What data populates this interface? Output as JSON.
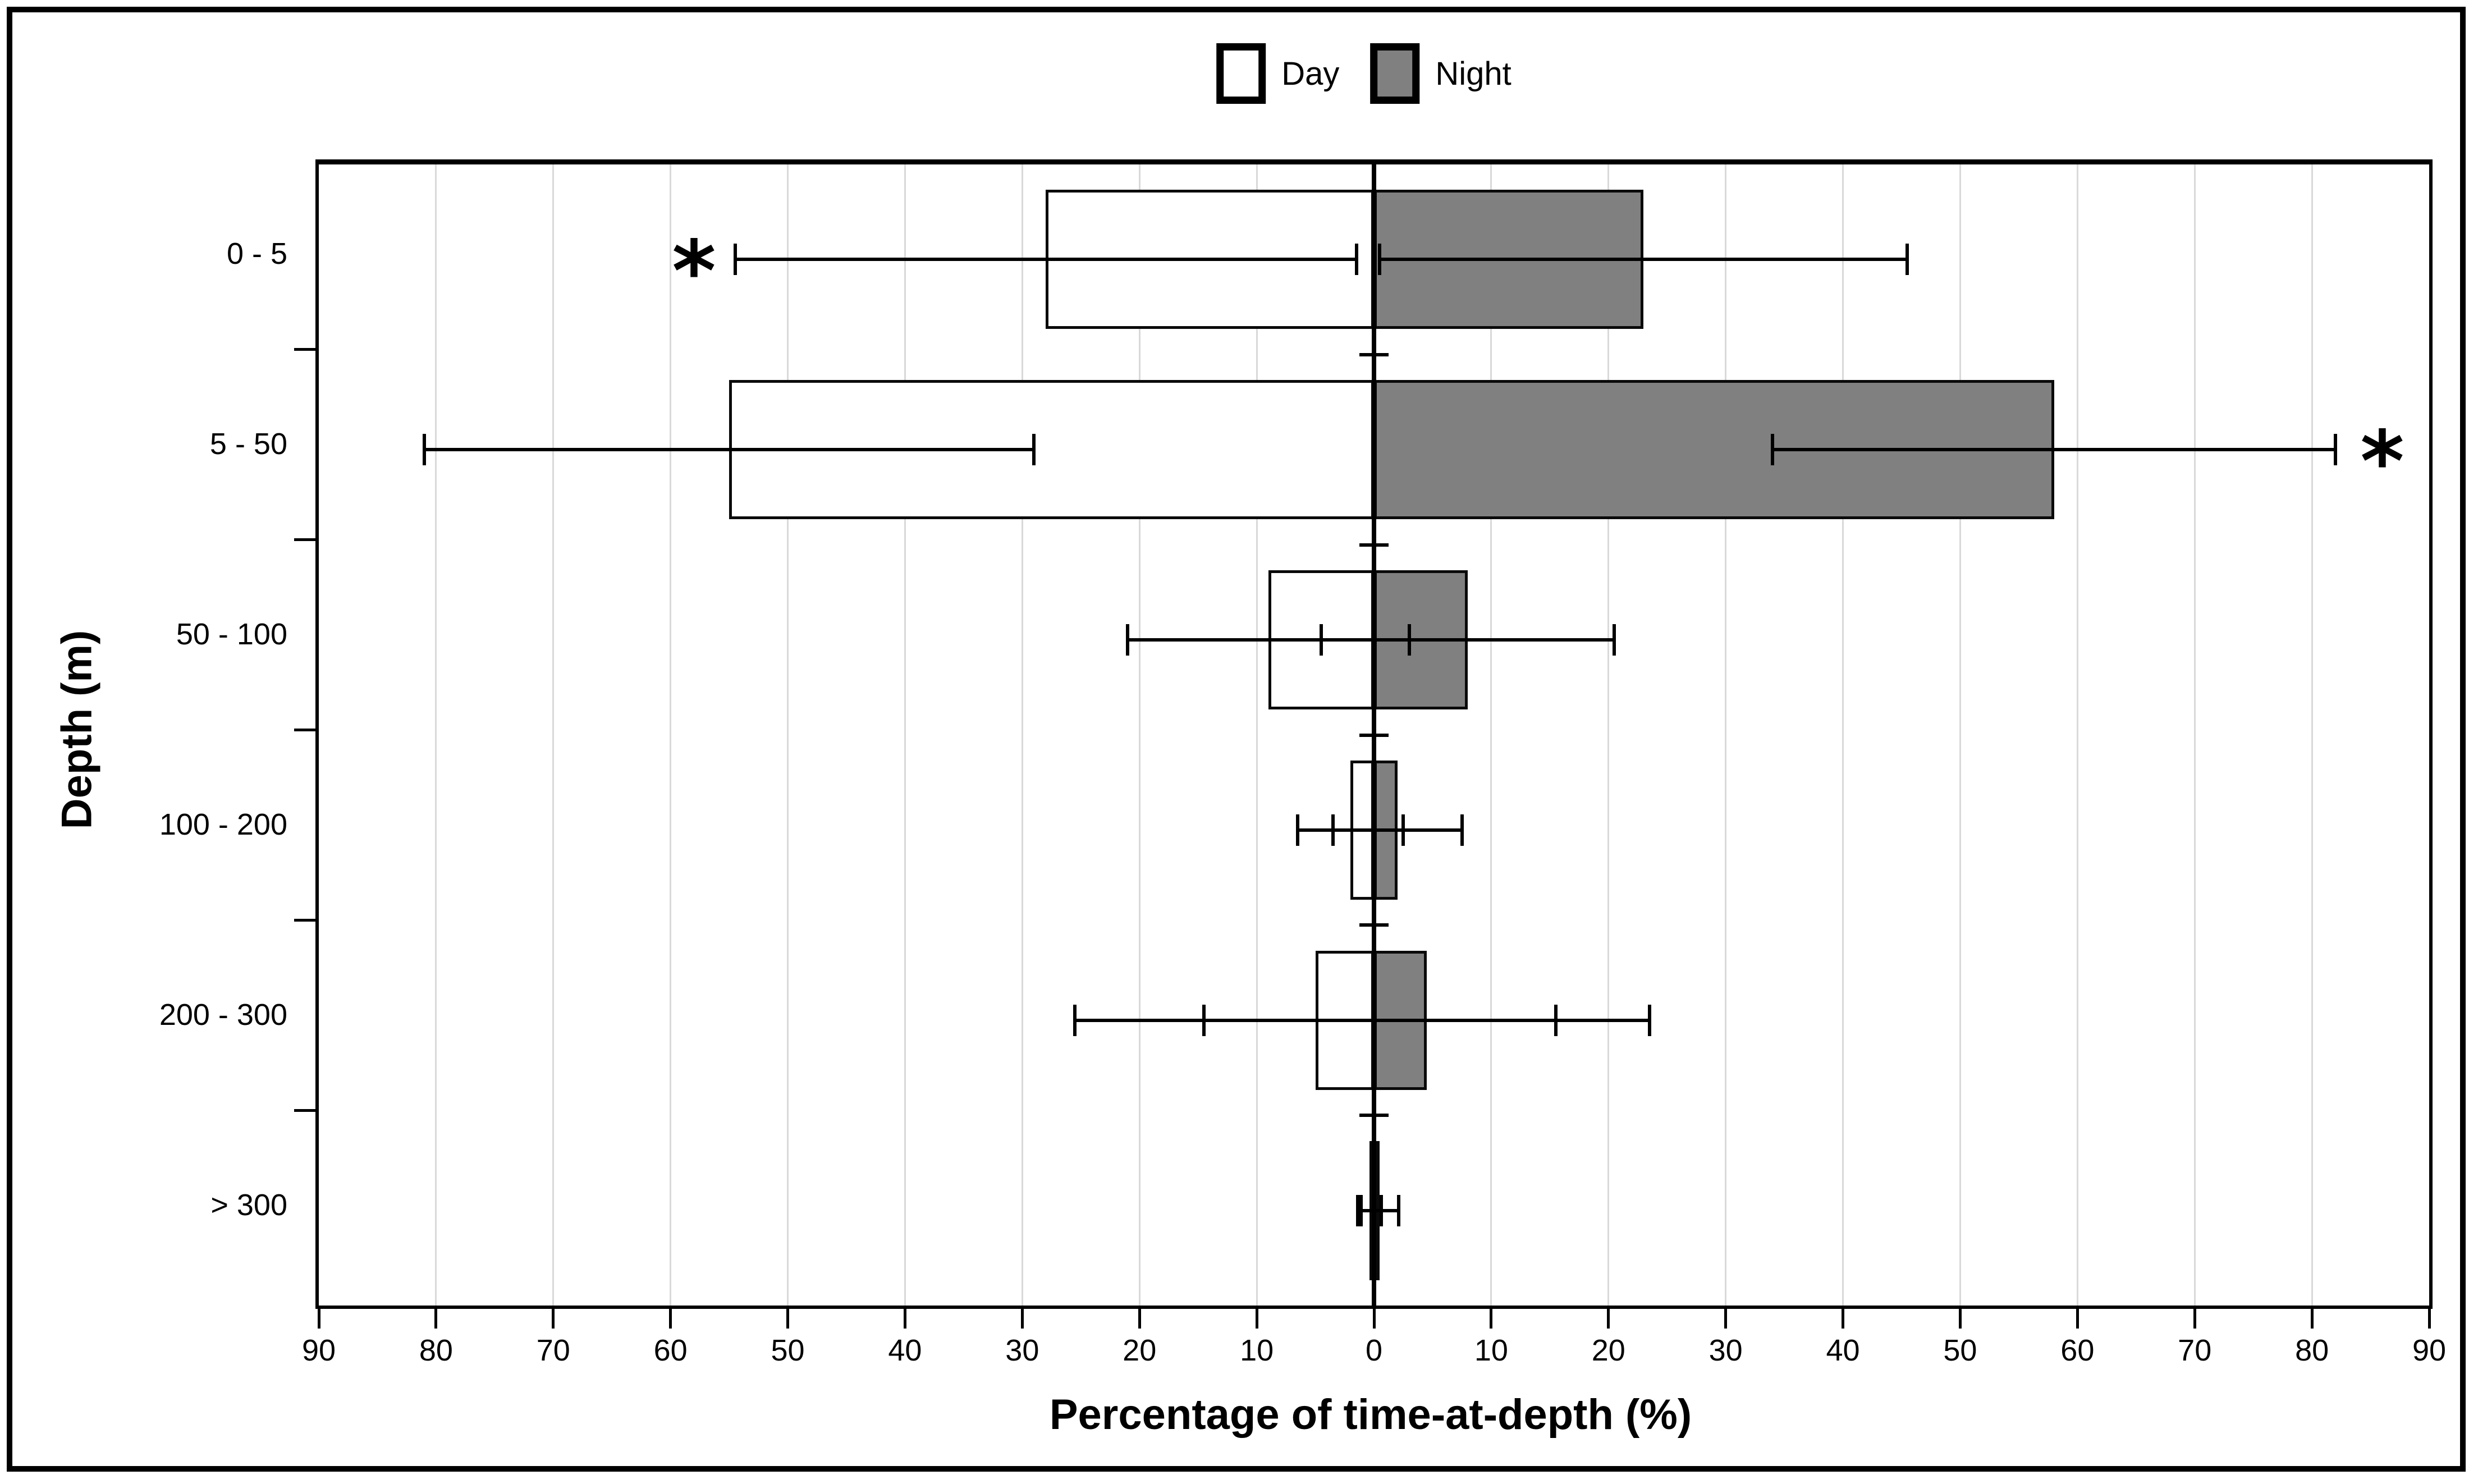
{
  "legend": {
    "items": [
      {
        "label": "Day",
        "fill": "#ffffff"
      },
      {
        "label": "Night",
        "fill": "#808080"
      }
    ]
  },
  "axes": {
    "x_title": "Percentage of time-at-depth (%)",
    "y_title": "Depth (m)",
    "x_tick_labels": [
      "90",
      "80",
      "70",
      "60",
      "50",
      "40",
      "30",
      "20",
      "10",
      "0",
      "10",
      "20",
      "30",
      "40",
      "50",
      "60",
      "70",
      "80",
      "90"
    ]
  },
  "colors": {
    "day_fill": "#ffffff",
    "night_fill": "#808080",
    "bar_border": "#0a0a0a",
    "gridline": "#d9d9d9",
    "axis": "#000000",
    "background": "#ffffff"
  },
  "chart_data": {
    "type": "bar",
    "subtype": "horizontal-diverging-with-error-bars",
    "title": "",
    "xlabel": "Percentage of time-at-depth (%)",
    "ylabel": "Depth (m)",
    "categories": [
      "0 - 5",
      "5 - 50",
      "50 - 100",
      "100 - 200",
      "200 - 300",
      "> 300"
    ],
    "xlim": [
      -90,
      90
    ],
    "x_tick_interval": 10,
    "x_tick_label_format": "absolute-value",
    "grid": "vertical-on",
    "legend_position": "top-center",
    "series": [
      {
        "name": "Day",
        "side": "left",
        "fill": "#ffffff",
        "values": [
          28,
          55,
          9,
          2,
          5,
          0.4
        ],
        "sd": [
          26.5,
          26,
          12,
          4.5,
          20.5,
          1.0
        ]
      },
      {
        "name": "Night",
        "side": "right",
        "fill": "#808080",
        "values": [
          23,
          58,
          8,
          2,
          4.5,
          0.5
        ],
        "sd": [
          22.5,
          24,
          12.5,
          5.5,
          19,
          1.6
        ]
      }
    ],
    "significance_markers": [
      {
        "category": "0 - 5",
        "side": "left",
        "at_value": 58,
        "symbol": "*"
      },
      {
        "category": "5 - 50",
        "side": "right",
        "at_value": 86,
        "symbol": "*"
      }
    ]
  }
}
